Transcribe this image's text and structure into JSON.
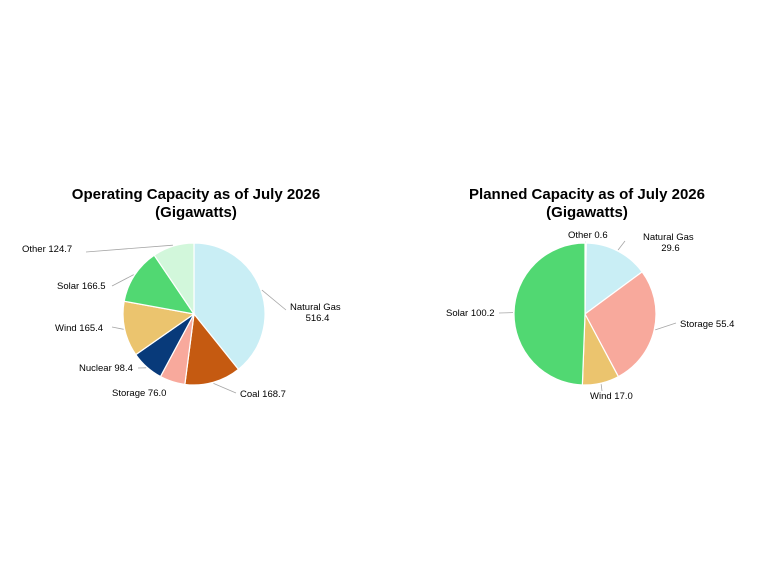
{
  "chart_data": [
    {
      "type": "pie",
      "title": [
        "Operating Capacity as of July 2026",
        "(Gigawatts)"
      ],
      "unit": "Gigawatts",
      "slices": [
        {
          "label": "Natural Gas",
          "value": 516.4,
          "display": [
            "Natural Gas",
            "516.4"
          ],
          "color": "#c9eef5"
        },
        {
          "label": "Coal",
          "value": 168.7,
          "display": [
            "Coal 168.7"
          ],
          "color": "#c55a11"
        },
        {
          "label": "Storage",
          "value": 76.0,
          "display": [
            "Storage 76.0"
          ],
          "color": "#f8a99c"
        },
        {
          "label": "Nuclear",
          "value": 98.4,
          "display": [
            "Nuclear 98.4"
          ],
          "color": "#083a7a"
        },
        {
          "label": "Wind",
          "value": 165.4,
          "display": [
            "Wind 165.4"
          ],
          "color": "#ebc46e"
        },
        {
          "label": "Solar",
          "value": 166.5,
          "display": [
            "Solar 166.5"
          ],
          "color": "#51d872"
        },
        {
          "label": "Other",
          "value": 124.7,
          "display": [
            "Other  124.7"
          ],
          "color": "#d2f7db"
        }
      ]
    },
    {
      "type": "pie",
      "title": [
        "Planned Capacity as of July 2026",
        "(Gigawatts)"
      ],
      "unit": "Gigawatts",
      "slices": [
        {
          "label": "Other",
          "value": 0.6,
          "display": [
            "Other  0.6"
          ],
          "color": "#d2f7db"
        },
        {
          "label": "Natural Gas",
          "value": 29.6,
          "display": [
            "Natural Gas",
            "29.6"
          ],
          "color": "#c9eef5"
        },
        {
          "label": "Storage",
          "value": 55.4,
          "display": [
            "Storage 55.4"
          ],
          "color": "#f8a99c"
        },
        {
          "label": "Wind",
          "value": 17.0,
          "display": [
            "Wind 17.0"
          ],
          "color": "#ebc46e"
        },
        {
          "label": "Solar",
          "value": 100.2,
          "display": [
            "Solar 100.2"
          ],
          "color": "#51d872"
        }
      ]
    }
  ]
}
